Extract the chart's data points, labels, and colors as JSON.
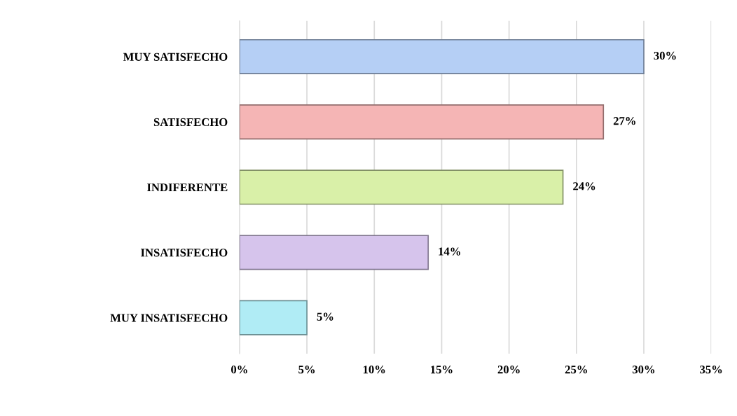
{
  "chart_data": {
    "type": "bar",
    "orientation": "horizontal",
    "categories": [
      "MUY SATISFECHO",
      "SATISFECHO",
      "INDIFERENTE",
      "INSATISFECHO",
      "MUY INSATISFECHO"
    ],
    "values": [
      30,
      27,
      24,
      14,
      5
    ],
    "colors": [
      "#b5cff5",
      "#f5b5b5",
      "#d9f0a8",
      "#d6c4ec",
      "#b0ecf5"
    ],
    "value_labels": [
      "30%",
      "27%",
      "24%",
      "14%",
      "5%"
    ],
    "xlim": [
      0,
      35
    ],
    "xticks": [
      {
        "value": 0,
        "label": "0%"
      },
      {
        "value": 5,
        "label": "5%"
      },
      {
        "value": 10,
        "label": "10%"
      },
      {
        "value": 15,
        "label": "15%"
      },
      {
        "value": 20,
        "label": "20%"
      },
      {
        "value": 25,
        "label": "25%"
      },
      {
        "value": 30,
        "label": "30%"
      },
      {
        "value": 35,
        "label": "35%"
      }
    ],
    "grid": "x"
  }
}
